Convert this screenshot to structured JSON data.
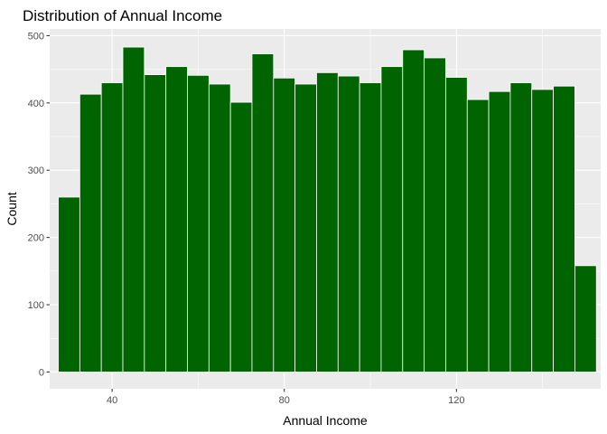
{
  "chart_data": {
    "type": "bar",
    "title": "Distribution of Annual Income",
    "xlabel": "Annual Income",
    "ylabel": "Count",
    "xlim": [
      25.5,
      153.5
    ],
    "ylim": [
      -25,
      510
    ],
    "x_ticks": [
      40,
      80,
      120
    ],
    "y_ticks": [
      0,
      100,
      200,
      300,
      400,
      500
    ],
    "bin_width": 5,
    "bins": [
      {
        "x": 30,
        "value": 260
      },
      {
        "x": 35,
        "value": 413
      },
      {
        "x": 40,
        "value": 430
      },
      {
        "x": 45,
        "value": 483
      },
      {
        "x": 50,
        "value": 442
      },
      {
        "x": 55,
        "value": 454
      },
      {
        "x": 60,
        "value": 441
      },
      {
        "x": 65,
        "value": 428
      },
      {
        "x": 70,
        "value": 401
      },
      {
        "x": 75,
        "value": 473
      },
      {
        "x": 80,
        "value": 437
      },
      {
        "x": 85,
        "value": 428
      },
      {
        "x": 90,
        "value": 445
      },
      {
        "x": 95,
        "value": 440
      },
      {
        "x": 100,
        "value": 430
      },
      {
        "x": 105,
        "value": 454
      },
      {
        "x": 110,
        "value": 479
      },
      {
        "x": 115,
        "value": 467
      },
      {
        "x": 120,
        "value": 438
      },
      {
        "x": 125,
        "value": 405
      },
      {
        "x": 130,
        "value": 417
      },
      {
        "x": 135,
        "value": 430
      },
      {
        "x": 140,
        "value": 420
      },
      {
        "x": 145,
        "value": 425
      },
      {
        "x": 150,
        "value": 158
      }
    ],
    "grid": true,
    "legend": "none",
    "colors": {
      "bar_fill": "#006400",
      "bar_outline": "#ffffff",
      "panel": "#ebebeb",
      "grid": "#ffffff"
    }
  }
}
